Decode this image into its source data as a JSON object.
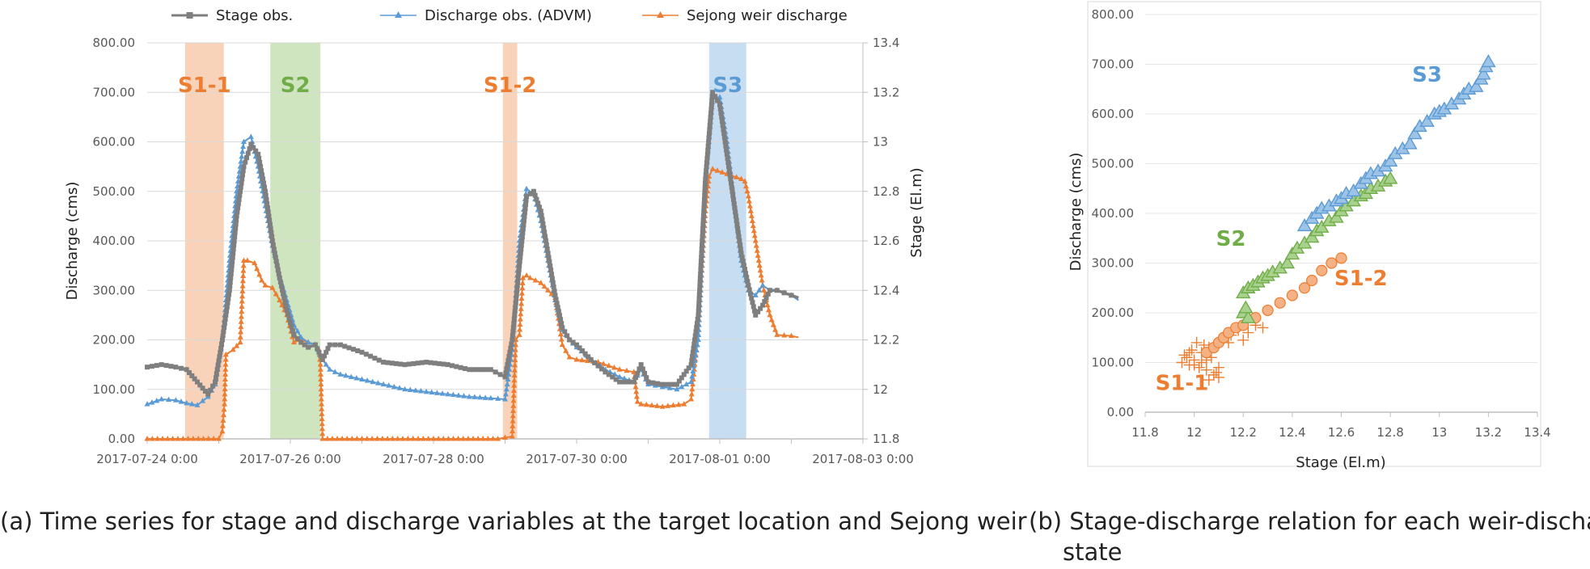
{
  "chart_data": [
    {
      "type": "line",
      "caption": "(a) Time series for stage and discharge variables at the target location and Sejong weir",
      "x_tick_labels": [
        "2017-07-24 0:00",
        "2017-07-26 0:00",
        "2017-07-28 0:00",
        "2017-07-30 0:00",
        "2017-08-01 0:00",
        "2017-08-03 0:00"
      ],
      "xlim_days_from_2017_07_24": [
        0,
        10
      ],
      "ylabel": "Discharge (cms)",
      "ylabel_right": "Stage (El.m)",
      "ylim": [
        0,
        800
      ],
      "ylim_right": [
        11.8,
        13.4
      ],
      "y_tick_labels": [
        "0.00",
        "100.00",
        "200.00",
        "300.00",
        "400.00",
        "500.00",
        "600.00",
        "700.00",
        "800.00"
      ],
      "y_right_tick_labels": [
        "11.8",
        "12",
        "12.2",
        "12.4",
        "12.6",
        "12.8",
        "13",
        "13.2",
        "13.4"
      ],
      "legend": {
        "position": "top",
        "entries": [
          "Stage obs.",
          "Discharge obs. (ADVM)",
          "Sejong weir discharge"
        ]
      },
      "regions": [
        {
          "label": "S1-1",
          "x_start": 0.53,
          "x_end": 1.07,
          "color": "#f8cbad",
          "text_color": "#ed7d31"
        },
        {
          "label": "S2",
          "x_start": 1.72,
          "x_end": 2.42,
          "color": "#c5e0b4",
          "text_color": "#70ad47"
        },
        {
          "label": "S1-2",
          "x_start": 4.97,
          "x_end": 5.17,
          "color": "#f8cbad",
          "text_color": "#ed7d31"
        },
        {
          "label": "S3",
          "x_start": 7.85,
          "x_end": 8.37,
          "color": "#bdd7ee",
          "text_color": "#5b9bd5"
        }
      ],
      "series": [
        {
          "name": "Stage obs.",
          "axis": "right",
          "color": "#7f7f7f",
          "marker": "square",
          "x": [
            0,
            0.2,
            0.4,
            0.55,
            0.7,
            0.85,
            0.95,
            1.05,
            1.15,
            1.25,
            1.35,
            1.45,
            1.55,
            1.65,
            1.75,
            1.85,
            1.95,
            2.05,
            2.15,
            2.25,
            2.35,
            2.45,
            2.55,
            2.7,
            3.0,
            3.3,
            3.6,
            3.9,
            4.2,
            4.5,
            4.8,
            5.0,
            5.1,
            5.2,
            5.3,
            5.4,
            5.5,
            5.6,
            5.7,
            5.8,
            5.9,
            6.0,
            6.2,
            6.4,
            6.6,
            6.8,
            6.9,
            7.0,
            7.2,
            7.4,
            7.6,
            7.7,
            7.8,
            7.9,
            8.0,
            8.1,
            8.2,
            8.3,
            8.4,
            8.5,
            8.6,
            8.7,
            8.8,
            8.9,
            9.0,
            9.1
          ],
          "y": [
            12.09,
            12.1,
            12.09,
            12.08,
            12.03,
            11.98,
            12.03,
            12.2,
            12.4,
            12.7,
            12.9,
            12.99,
            12.95,
            12.8,
            12.6,
            12.45,
            12.32,
            12.22,
            12.19,
            12.17,
            12.18,
            12.12,
            12.18,
            12.18,
            12.15,
            12.11,
            12.1,
            12.11,
            12.1,
            12.08,
            12.08,
            12.05,
            12.2,
            12.5,
            12.78,
            12.8,
            12.72,
            12.55,
            12.38,
            12.25,
            12.2,
            12.18,
            12.12,
            12.07,
            12.03,
            12.03,
            12.1,
            12.03,
            12.02,
            12.02,
            12.1,
            12.3,
            12.85,
            13.2,
            13.15,
            12.95,
            12.75,
            12.55,
            12.42,
            12.3,
            12.34,
            12.4,
            12.4,
            12.39,
            12.38,
            12.37
          ]
        },
        {
          "name": "Discharge obs. (ADVM)",
          "axis": "left",
          "color": "#5b9bd5",
          "marker": "triangle",
          "x": [
            0,
            0.2,
            0.4,
            0.55,
            0.7,
            0.85,
            0.95,
            1.05,
            1.15,
            1.25,
            1.35,
            1.45,
            1.55,
            1.65,
            1.75,
            1.85,
            1.95,
            2.05,
            2.15,
            2.25,
            2.35,
            2.45,
            2.55,
            2.7,
            3.0,
            3.3,
            3.6,
            3.9,
            4.2,
            4.5,
            4.8,
            5.0,
            5.1,
            5.2,
            5.3,
            5.4,
            5.5,
            5.6,
            5.7,
            5.8,
            5.9,
            6.0,
            6.2,
            6.4,
            6.6,
            6.8,
            6.9,
            7.0,
            7.2,
            7.4,
            7.6,
            7.7,
            7.8,
            7.9,
            8.0,
            8.1,
            8.2,
            8.3,
            8.4,
            8.5,
            8.6,
            8.7,
            8.8,
            8.9,
            9.0,
            9.1
          ],
          "y": [
            70,
            80,
            78,
            72,
            68,
            85,
            110,
            200,
            360,
            500,
            600,
            610,
            550,
            470,
            390,
            330,
            280,
            230,
            205,
            195,
            190,
            160,
            140,
            130,
            120,
            110,
            100,
            95,
            90,
            85,
            82,
            80,
            180,
            400,
            505,
            495,
            440,
            360,
            280,
            220,
            200,
            185,
            160,
            140,
            125,
            115,
            140,
            110,
            105,
            100,
            115,
            200,
            520,
            690,
            690,
            600,
            480,
            360,
            300,
            290,
            310,
            300,
            300,
            295,
            290,
            280
          ]
        },
        {
          "name": "Sejong weir discharge",
          "axis": "left",
          "color": "#ed7d31",
          "marker": "triangle",
          "x": [
            0,
            0.5,
            1.0,
            1.05,
            1.08,
            1.1,
            1.2,
            1.3,
            1.35,
            1.4,
            1.5,
            1.6,
            1.65,
            1.75,
            1.85,
            1.95,
            2.05,
            2.15,
            2.25,
            2.35,
            2.4,
            2.42,
            2.45,
            3.0,
            4.0,
            4.9,
            5.1,
            5.15,
            5.2,
            5.25,
            5.3,
            5.35,
            5.5,
            5.7,
            5.8,
            5.9,
            6.0,
            6.3,
            6.6,
            6.8,
            6.85,
            6.9,
            7.2,
            7.5,
            7.6,
            7.7,
            7.8,
            7.85,
            7.9,
            8.1,
            8.3,
            8.35,
            8.4,
            8.5,
            8.6,
            8.7,
            8.8,
            9.0,
            9.1
          ],
          "y": [
            0,
            0,
            0,
            15,
            70,
            170,
            180,
            195,
            360,
            360,
            355,
            320,
            310,
            305,
            280,
            250,
            195,
            200,
            195,
            190,
            180,
            150,
            0,
            0,
            0,
            0,
            5,
            200,
            210,
            325,
            330,
            325,
            315,
            285,
            190,
            165,
            160,
            155,
            140,
            135,
            75,
            70,
            65,
            70,
            80,
            220,
            460,
            530,
            545,
            535,
            525,
            520,
            490,
            400,
            310,
            250,
            210,
            208,
            205
          ]
        }
      ]
    },
    {
      "type": "scatter",
      "caption": "(b) Stage-discharge relation for each weir-discharge state",
      "xlabel": "Stage (El.m)",
      "ylabel": "Discharge (cms)",
      "xlim": [
        11.8,
        13.4
      ],
      "ylim": [
        0,
        800
      ],
      "x_tick_labels": [
        "11.8",
        "12",
        "12.2",
        "12.4",
        "12.6",
        "12.8",
        "13",
        "13.2",
        "13.4"
      ],
      "y_tick_labels": [
        "0.00",
        "100.00",
        "200.00",
        "300.00",
        "400.00",
        "500.00",
        "600.00",
        "700.00",
        "800.00"
      ],
      "series": [
        {
          "name": "S1-1",
          "marker": "plus",
          "color": "#ed7d31",
          "label_pos": [
            11.95,
            45
          ],
          "x": [
            11.95,
            11.97,
            11.98,
            12.0,
            12.02,
            12.03,
            12.05,
            12.06,
            12.08,
            12.1,
            11.96,
            11.99,
            12.01,
            12.04,
            12.07,
            12.09,
            12.12,
            12.15,
            12.18,
            12.22,
            12.25,
            12.28,
            12.2,
            12.14,
            12.0,
            12.03,
            12.06,
            11.98,
            12.1,
            12.05
          ],
          "y": [
            100,
            110,
            95,
            105,
            90,
            120,
            85,
            130,
            75,
            70,
            115,
            125,
            140,
            135,
            110,
            80,
            150,
            155,
            165,
            160,
            175,
            170,
            145,
            140,
            95,
            100,
            65,
            120,
            90,
            105
          ]
        },
        {
          "name": "S1-2",
          "marker": "circle",
          "color": "#ed7d31",
          "label_pos": [
            12.68,
            255
          ],
          "x": [
            12.05,
            12.08,
            12.1,
            12.12,
            12.14,
            12.17,
            12.2,
            12.25,
            12.3,
            12.35,
            12.4,
            12.45,
            12.48,
            12.52,
            12.56,
            12.6
          ],
          "y": [
            120,
            130,
            140,
            150,
            160,
            170,
            175,
            190,
            205,
            220,
            235,
            250,
            265,
            285,
            300,
            310
          ]
        },
        {
          "name": "S2",
          "marker": "triangle",
          "color": "#70ad47",
          "label_pos": [
            12.15,
            335
          ],
          "x": [
            12.2,
            12.22,
            12.24,
            12.26,
            12.28,
            12.3,
            12.32,
            12.35,
            12.38,
            12.4,
            12.42,
            12.45,
            12.48,
            12.5,
            12.52,
            12.55,
            12.58,
            12.6,
            12.62,
            12.65,
            12.68,
            12.7,
            12.72,
            12.75,
            12.78,
            12.8,
            12.2,
            12.22,
            12.21
          ],
          "y": [
            240,
            250,
            255,
            262,
            270,
            275,
            282,
            290,
            300,
            318,
            330,
            340,
            352,
            365,
            372,
            385,
            392,
            405,
            415,
            425,
            435,
            440,
            450,
            455,
            465,
            470,
            200,
            190,
            210
          ]
        },
        {
          "name": "S3",
          "marker": "triangle",
          "color": "#5b9bd5",
          "label_pos": [
            12.95,
            665
          ],
          "x": [
            12.45,
            12.48,
            12.5,
            12.52,
            12.55,
            12.58,
            12.6,
            12.62,
            12.65,
            12.68,
            12.7,
            12.72,
            12.75,
            12.78,
            12.8,
            12.82,
            12.85,
            12.88,
            12.9,
            12.92,
            12.95,
            12.98,
            13.0,
            13.02,
            13.05,
            13.08,
            13.1,
            13.12,
            13.15,
            13.17,
            13.18,
            13.19,
            13.2
          ],
          "y": [
            375,
            390,
            400,
            410,
            415,
            425,
            430,
            440,
            445,
            460,
            470,
            480,
            485,
            495,
            505,
            520,
            530,
            540,
            560,
            575,
            585,
            600,
            605,
            610,
            620,
            630,
            640,
            650,
            655,
            670,
            680,
            695,
            705
          ]
        }
      ]
    }
  ]
}
